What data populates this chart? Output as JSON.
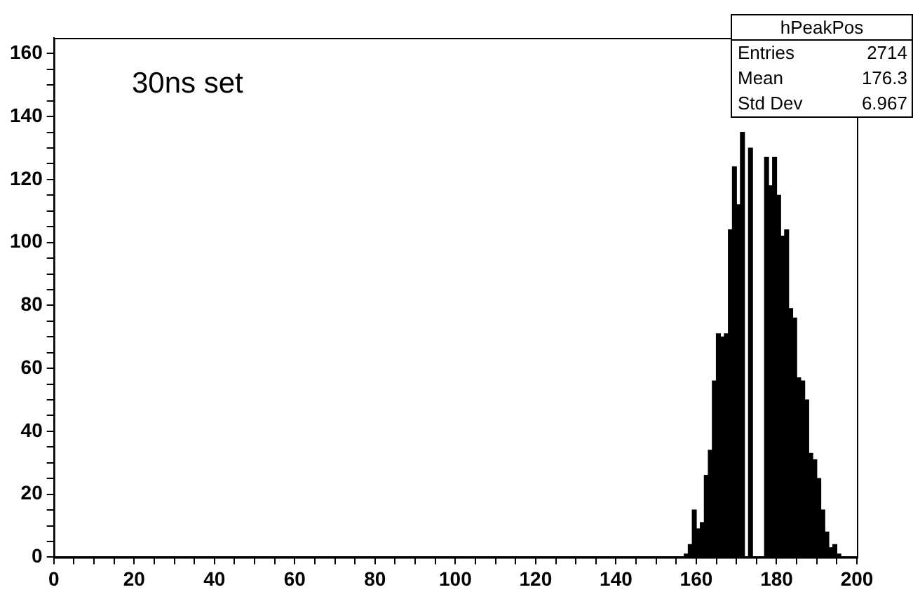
{
  "chart_data": {
    "type": "histogram",
    "bins": [
      157,
      158,
      159,
      160,
      161,
      162,
      163,
      164,
      165,
      166,
      167,
      168,
      169,
      170,
      171,
      172,
      173,
      174,
      175,
      176,
      177,
      178,
      179,
      180,
      181,
      182,
      183,
      184,
      185,
      186,
      187,
      188,
      189,
      190,
      191,
      192,
      193,
      194,
      195,
      196
    ],
    "values": [
      1,
      4,
      15,
      9,
      11,
      26,
      34,
      56,
      71,
      70,
      71,
      104,
      124,
      112,
      135,
      null,
      130,
      null,
      null,
      null,
      127,
      118,
      127,
      115,
      102,
      104,
      79,
      76,
      57,
      56,
      50,
      33,
      31,
      25,
      15,
      8,
      3,
      4,
      1
    ],
    "color": "#000000",
    "xlim": [
      0,
      200
    ],
    "xticks": [
      0,
      {
        "value": 5,
        "label": null
      },
      {
        "value": 10,
        "label": null
      },
      {
        "value": 15,
        "label": null
      },
      20,
      {
        "value": 25,
        "label": null
      },
      {
        "value": 30,
        "label": null
      },
      {
        "value": 35,
        "label": null
      },
      40,
      {
        "value": 45,
        "label": null
      },
      {
        "value": 50,
        "label": null
      },
      {
        "value": 55,
        "label": null
      },
      60,
      {
        "value": 65,
        "label": null
      },
      {
        "value": 70,
        "label": null
      },
      {
        "value": 75,
        "label": null
      },
      80,
      {
        "value": 85,
        "label": null
      },
      {
        "value": 90,
        "label": null
      },
      {
        "value": 95,
        "label": null
      },
      100,
      {
        "value": 105,
        "label": null
      },
      {
        "value": 110,
        "label": null
      },
      {
        "value": 115,
        "label": null
      },
      120,
      {
        "value": 125,
        "label": null
      },
      {
        "value": 130,
        "label": null
      },
      {
        "value": 135,
        "label": null
      },
      140,
      {
        "value": 145,
        "label": null
      },
      {
        "value": 150,
        "label": null
      },
      {
        "value": 155,
        "label": null
      },
      160,
      {
        "value": 165,
        "label": null
      },
      {
        "value": 170,
        "label": null
      },
      {
        "value": 175,
        "label": null
      },
      180,
      {
        "value": 185,
        "label": null
      },
      {
        "value": 190,
        "label": null
      },
      {
        "value": 195,
        "label": null
      },
      200
    ],
    "ylim": [
      0,
      165
    ],
    "yticks": [
      0,
      {
        "value": 5,
        "label": null
      },
      {
        "value": 10,
        "label": null
      },
      {
        "value": 15,
        "label": null
      },
      20,
      {
        "value": 25,
        "label": null
      },
      {
        "value": 30,
        "label": null
      },
      {
        "value": 35,
        "label": null
      },
      40,
      {
        "value": 45,
        "label": null
      },
      {
        "value": 50,
        "label": null
      },
      {
        "value": 55,
        "label": null
      },
      60,
      {
        "value": 65,
        "label": null
      },
      {
        "value": 70,
        "label": null
      },
      {
        "value": 75,
        "label": null
      },
      80,
      {
        "value": 85,
        "label": null
      },
      {
        "value": 90,
        "label": null
      },
      {
        "value": 95,
        "label": null
      },
      100,
      {
        "value": 105,
        "label": null
      },
      {
        "value": 110,
        "label": null
      },
      {
        "value": 115,
        "label": null
      },
      120,
      {
        "value": 125,
        "label": null
      },
      {
        "value": 130,
        "label": null
      },
      {
        "value": 135,
        "label": null
      },
      140,
      {
        "value": 145,
        "label": null
      },
      {
        "value": 150,
        "label": null
      },
      {
        "value": 155,
        "label": null
      },
      160
    ],
    "annotations": [
      "30ns set",
      "hPeakPos",
      "Entries 2714",
      "Mean 176.3",
      "Std Dev 6.967"
    ],
    "grid": false,
    "legend": false
  }
}
